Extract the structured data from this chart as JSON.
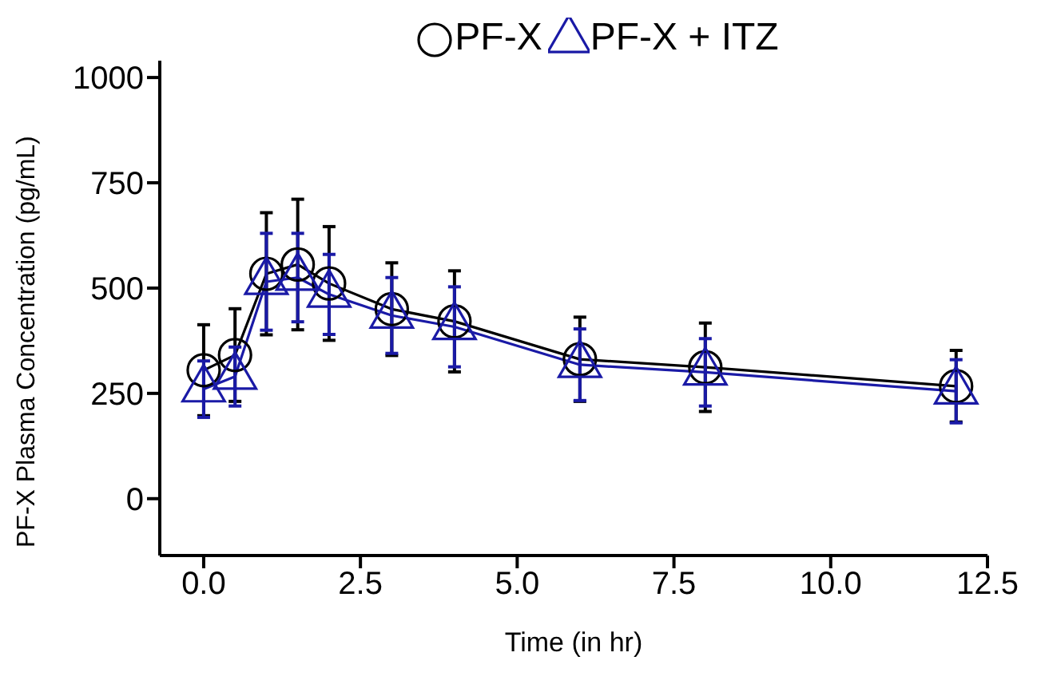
{
  "chart_data": {
    "type": "line",
    "xlabel": "Time (in hr)",
    "ylabel": "PF-X Plasma Concentration (pg/mL)",
    "x": [
      0,
      0.5,
      1,
      1.5,
      2,
      3,
      4,
      6,
      8,
      12
    ],
    "series": [
      {
        "name": "PF-X",
        "color": "#000000",
        "marker": "circle",
        "values": [
          305,
          341,
          534,
          556,
          511,
          450,
          421,
          331,
          312,
          267
        ],
        "errors": [
          108,
          110,
          145,
          155,
          135,
          110,
          120,
          100,
          105,
          85
        ]
      },
      {
        "name": "PF-X + ITZ",
        "color": "#1a1aa6",
        "marker": "triangle",
        "values": [
          260,
          290,
          515,
          525,
          485,
          435,
          408,
          318,
          300,
          255
        ],
        "errors": [
          67,
          70,
          115,
          105,
          95,
          90,
          95,
          85,
          80,
          75
        ]
      }
    ],
    "xlim": [
      -0.7,
      12.5
    ],
    "xticks": [
      {
        "value": 0,
        "label": "0.0"
      },
      {
        "value": 2.5,
        "label": "2.5"
      },
      {
        "value": 5,
        "label": "5.0"
      },
      {
        "value": 7.5,
        "label": "7.5"
      },
      {
        "value": 10,
        "label": "10.0"
      },
      {
        "value": 12.5,
        "label": "12.5"
      }
    ],
    "ylim": [
      -135,
      1040
    ],
    "yticks": [
      0,
      250,
      500,
      750,
      1000
    ],
    "grid": false,
    "legend": "top",
    "line_style": "solid"
  }
}
